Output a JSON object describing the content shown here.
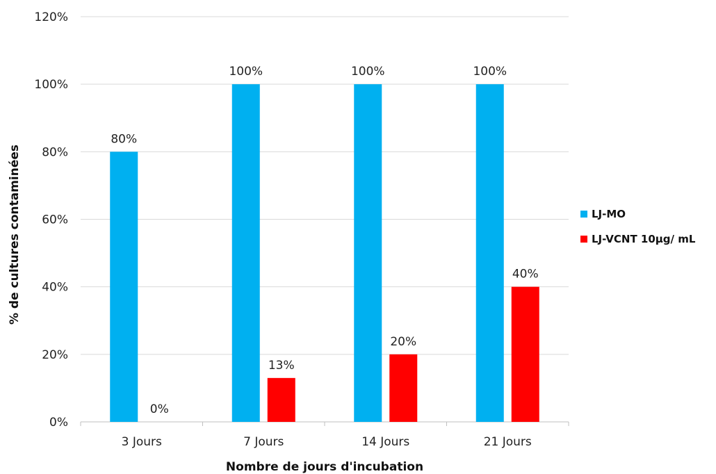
{
  "chart_data": {
    "type": "bar",
    "title": "",
    "xlabel": "Nombre de jours d'incubation",
    "ylabel": "% de cultures contaminées",
    "categories": [
      "3 Jours",
      "7 Jours",
      "14 Jours",
      "21 Jours"
    ],
    "ylim": [
      0,
      120
    ],
    "yticks": [
      0,
      20,
      40,
      60,
      80,
      100,
      120
    ],
    "ytick_labels": [
      "0%",
      "20%",
      "40%",
      "60%",
      "80%",
      "100%",
      "120%"
    ],
    "grid": true,
    "legend_position": "right",
    "series": [
      {
        "name": "LJ-MO",
        "color": "#00B0F0",
        "values": [
          80,
          100,
          100,
          100
        ],
        "labels": [
          "80%",
          "100%",
          "100%",
          "100%"
        ]
      },
      {
        "name": "LJ-VCNT 10µg/ mL",
        "color": "#FF0000",
        "values": [
          0,
          13,
          20,
          40
        ],
        "labels": [
          "0%",
          "13%",
          "20%",
          "40%"
        ]
      }
    ]
  }
}
